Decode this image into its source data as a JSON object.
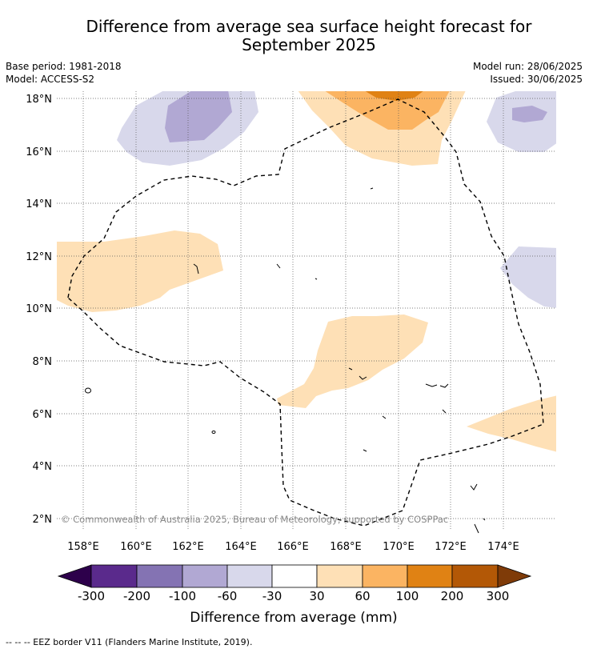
{
  "title": "Difference from average sea surface height forecast for\nSeptember 2025",
  "title_line1": "Difference from average sea surface height forecast for",
  "title_line2": "September 2025",
  "meta": {
    "base_period": "Base period: 1981-2018",
    "model": "Model: ACCESS-S2",
    "model_run": "Model run: 28/06/2025",
    "issued": "Issued: 30/06/2025"
  },
  "axes": {
    "lat_labels": [
      "18°N",
      "16°N",
      "14°N",
      "12°N",
      "10°N",
      "8°N",
      "6°N",
      "4°N",
      "2°N"
    ],
    "lon_labels": [
      "158°E",
      "160°E",
      "162°E",
      "164°E",
      "166°E",
      "168°E",
      "170°E",
      "172°E",
      "174°E"
    ]
  },
  "colorbar": {
    "ticks": [
      "-300",
      "-200",
      "-100",
      "-60",
      "-30",
      "30",
      "60",
      "100",
      "200",
      "300"
    ],
    "colors": [
      "#2d004b",
      "#5a2a8c",
      "#8473b3",
      "#b1a8d3",
      "#d8d8eb",
      "#ffffff",
      "#fee0b6",
      "#fbb462",
      "#e08214",
      "#b35806",
      "#7f3b08"
    ],
    "label": "Difference from average (mm)"
  },
  "copyright": "© Commonwealth of Australia 2025, Bureau of Meteorology, supported by COSPPac",
  "footnote": "-- -- -- EEZ border V11 (Flanders Marine Institute, 2019)."
}
